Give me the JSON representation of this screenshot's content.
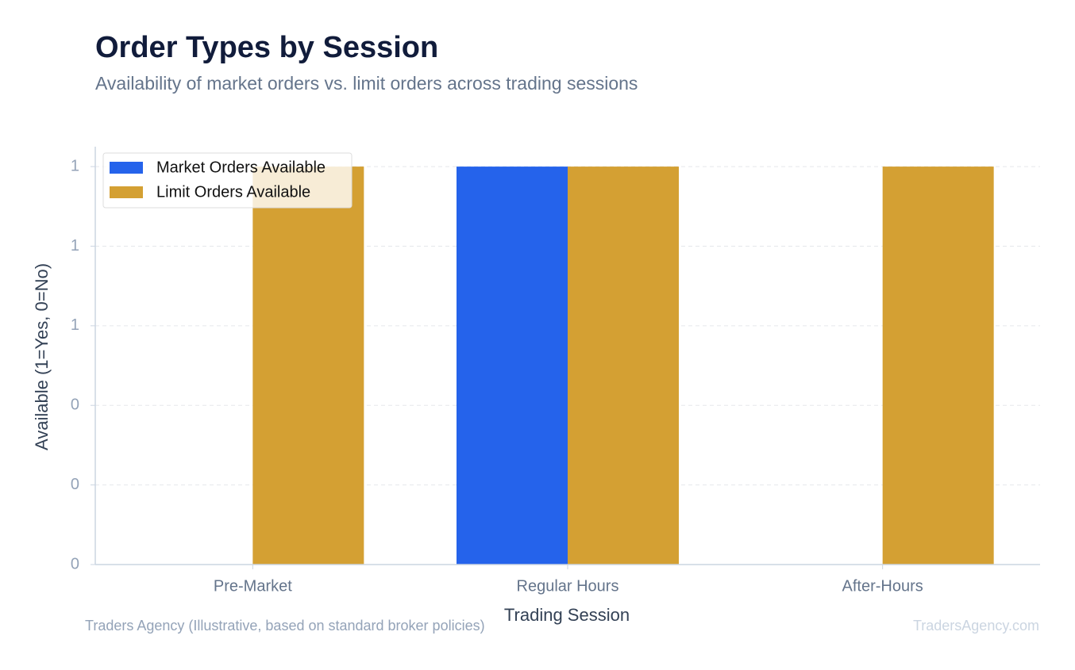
{
  "chart_data": {
    "type": "bar",
    "title": "Order Types by Session",
    "subtitle": "Availability of market orders vs. limit orders across trading sessions",
    "x_label": "Trading Session",
    "y_label": "Available (1=Yes, 0=No)",
    "categories": [
      "Pre-Market",
      "Regular Hours",
      "After-Hours"
    ],
    "series": [
      {
        "name": "Market Orders Available",
        "color": "#2563eb",
        "values": [
          0,
          1,
          0
        ]
      },
      {
        "name": "Limit Orders Available",
        "color": "#d4a033",
        "values": [
          1,
          1,
          1
        ]
      }
    ],
    "ylim": [
      0,
      1.05
    ],
    "yticks": [
      0,
      {
        "value": 0.2,
        "label": "0"
      },
      {
        "value": 0.4,
        "label": "0"
      },
      {
        "value": 0.6,
        "label": "1"
      },
      {
        "value": 0.8,
        "label": "1"
      },
      1
    ],
    "grid": true,
    "legend": "upper-left",
    "source": "Traders Agency (Illustrative, based on standard broker policies)",
    "watermark": "TradersAgency.com"
  }
}
